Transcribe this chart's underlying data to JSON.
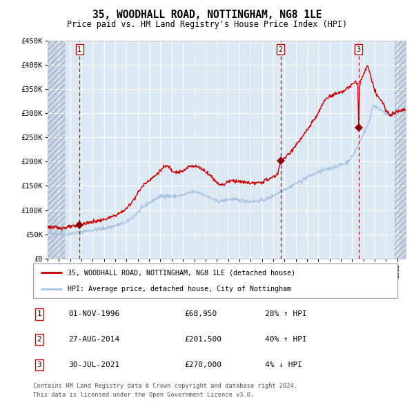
{
  "title": "35, WOODHALL ROAD, NOTTINGHAM, NG8 1LE",
  "subtitle": "Price paid vs. HM Land Registry's House Price Index (HPI)",
  "legend_line1": "35, WOODHALL ROAD, NOTTINGHAM, NG8 1LE (detached house)",
  "legend_line2": "HPI: Average price, detached house, City of Nottingham",
  "footer1": "Contains HM Land Registry data © Crown copyright and database right 2024.",
  "footer2": "This data is licensed under the Open Government Licence v3.0.",
  "transactions": [
    {
      "num": 1,
      "date": "01-NOV-1996",
      "price": 68950,
      "pct": "28%",
      "dir": "↑"
    },
    {
      "num": 2,
      "date": "27-AUG-2014",
      "price": 201500,
      "pct": "40%",
      "dir": "↑"
    },
    {
      "num": 3,
      "date": "30-JUL-2021",
      "price": 270000,
      "pct": "4%",
      "dir": "↓"
    }
  ],
  "transaction_dates_num": [
    1996.833,
    2014.648,
    2021.581
  ],
  "transaction_prices": [
    68950,
    201500,
    270000
  ],
  "hpi_color": "#a8c4e0",
  "price_color": "#cc0000",
  "dot_color": "#8b0000",
  "plot_bg": "#dce9f5",
  "grid_color": "#ffffff",
  "dashed_line_color": "#cc0000",
  "ylim": [
    0,
    450000
  ],
  "yticks": [
    0,
    50000,
    100000,
    150000,
    200000,
    250000,
    300000,
    350000,
    400000,
    450000
  ],
  "ytick_labels": [
    "£0",
    "£50K",
    "£100K",
    "£150K",
    "£200K",
    "£250K",
    "£300K",
    "£350K",
    "£400K",
    "£450K"
  ],
  "xlim_start": 1994.0,
  "xlim_end": 2025.75,
  "hatch_left_end": 1995.5,
  "hatch_right_start": 2024.75
}
